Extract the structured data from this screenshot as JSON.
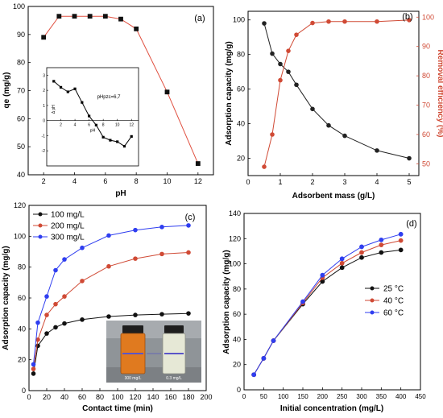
{
  "chart_data": [
    {
      "panel": "(a)",
      "type": "line",
      "xlabel": "pH",
      "ylabel": "qe (mg/g)",
      "xlim": [
        1,
        13
      ],
      "ylim": [
        40,
        100
      ],
      "xticks": [
        2,
        4,
        6,
        8,
        10,
        12
      ],
      "yticks": [
        40,
        50,
        60,
        70,
        80,
        90,
        100
      ],
      "series": [
        {
          "x": [
            2,
            3,
            4,
            5,
            6,
            7,
            8,
            10,
            12
          ],
          "y": [
            89,
            96.5,
            96.5,
            96.5,
            96.5,
            95.5,
            92,
            69.5,
            44
          ],
          "color": "#e05040"
        }
      ],
      "inset": {
        "type": "line",
        "annotation": "pHpzc=6,7",
        "xlabel": "pH",
        "ylabel": "Δ pH",
        "xlim": [
          0,
          13
        ],
        "ylim": [
          -3,
          3.5
        ],
        "xticks": [
          2,
          4,
          6,
          8,
          10,
          12
        ],
        "yticks": [
          -2,
          -1,
          0,
          1,
          2,
          3
        ],
        "x": [
          1,
          2,
          3,
          4,
          5,
          6,
          7,
          8,
          9,
          10,
          11,
          12
        ],
        "y": [
          2.6,
          2.2,
          1.9,
          2.1,
          1.2,
          0.3,
          -0.3,
          -1.1,
          -1.3,
          -1.4,
          -1.7,
          -1.05
        ]
      }
    },
    {
      "panel": "(b)",
      "type": "line",
      "xlabel": "Adsorbent mass (g/L)",
      "ylabel": "Adsorption capacity (mg/g)",
      "ylabel2": "Removal efficiency (%)",
      "xlim": [
        0,
        5.3
      ],
      "ylim": [
        10,
        105
      ],
      "ylim2": [
        46,
        102
      ],
      "xticks": [
        0,
        1,
        2,
        3,
        4,
        5
      ],
      "yticks": [
        20,
        40,
        60,
        80,
        100
      ],
      "yticks2": [
        50,
        60,
        70,
        80,
        90,
        100
      ],
      "series": [
        {
          "axis": "left",
          "color": "#222222",
          "x": [
            0.5,
            0.75,
            1.0,
            1.25,
            1.5,
            2.0,
            2.5,
            3.0,
            4.0,
            5.0
          ],
          "y": [
            98,
            80.5,
            74.5,
            70,
            62.5,
            48.5,
            39,
            33,
            24.5,
            20
          ]
        },
        {
          "axis": "right",
          "color": "#d04a35",
          "x": [
            0.5,
            0.75,
            1.0,
            1.25,
            1.5,
            2.0,
            2.5,
            3.0,
            4.0,
            5.0
          ],
          "y": [
            49,
            60,
            78.5,
            88.5,
            94,
            98,
            98.5,
            98.5,
            98.5,
            99
          ]
        }
      ]
    },
    {
      "panel": "(c)",
      "type": "line",
      "xlabel": "Contact time (min)",
      "ylabel": "Adsorption capacity (mg/g)",
      "xlim": [
        0,
        200
      ],
      "ylim": [
        0,
        120
      ],
      "xticks": [
        0,
        20,
        40,
        60,
        80,
        100,
        120,
        140,
        160,
        180,
        200
      ],
      "yticks": [
        0,
        20,
        40,
        60,
        80,
        100,
        120
      ],
      "legend_position": "top-left",
      "series": [
        {
          "name": "100 mg/L",
          "color": "#111111",
          "x": [
            5,
            10,
            20,
            30,
            40,
            60,
            90,
            120,
            150,
            180
          ],
          "y": [
            11,
            29,
            37,
            41,
            43.5,
            46,
            48,
            49,
            49.5,
            50
          ]
        },
        {
          "name": "200 mg/L",
          "color": "#d04a35",
          "x": [
            5,
            10,
            20,
            30,
            40,
            60,
            90,
            120,
            150,
            180
          ],
          "y": [
            14,
            33,
            49,
            56,
            61,
            71,
            80.5,
            85.5,
            88.5,
            89.5
          ]
        },
        {
          "name": "300 mg/L",
          "color": "#2f3ef0",
          "x": [
            5,
            10,
            20,
            30,
            40,
            60,
            90,
            120,
            150,
            180
          ],
          "y": [
            17,
            44,
            61,
            78,
            85,
            92.5,
            100.5,
            104,
            106,
            107
          ]
        }
      ],
      "photo_captions": [
        "300 mg/L",
        "0.3 mg/L"
      ]
    },
    {
      "panel": "(d)",
      "type": "line",
      "xlabel": "Initial concentration (mg/L)",
      "ylabel": "Adsorption capacity (mg/g)",
      "xlim": [
        0,
        450
      ],
      "ylim": [
        0,
        140
      ],
      "xticks": [
        0,
        50,
        100,
        150,
        200,
        250,
        300,
        350,
        400,
        450
      ],
      "yticks": [
        0,
        20,
        40,
        60,
        80,
        100,
        120,
        140
      ],
      "legend_position": "right",
      "series": [
        {
          "name": "25 °C",
          "color": "#111111",
          "x": [
            25,
            50,
            75,
            150,
            200,
            250,
            300,
            350,
            400
          ],
          "y": [
            12,
            25,
            39,
            68,
            86,
            97,
            105,
            109,
            111
          ]
        },
        {
          "name": "40 °C",
          "color": "#d04a35",
          "x": [
            25,
            50,
            75,
            150,
            200,
            250,
            300,
            350,
            400
          ],
          "y": [
            12,
            25,
            39,
            69,
            89,
            100.5,
            109,
            115,
            118.5
          ]
        },
        {
          "name": "60 °C",
          "color": "#2f3ef0",
          "x": [
            25,
            50,
            75,
            150,
            200,
            250,
            300,
            350,
            400
          ],
          "y": [
            12,
            25,
            39,
            70,
            91,
            104,
            113.5,
            119,
            123.5
          ]
        }
      ]
    }
  ]
}
